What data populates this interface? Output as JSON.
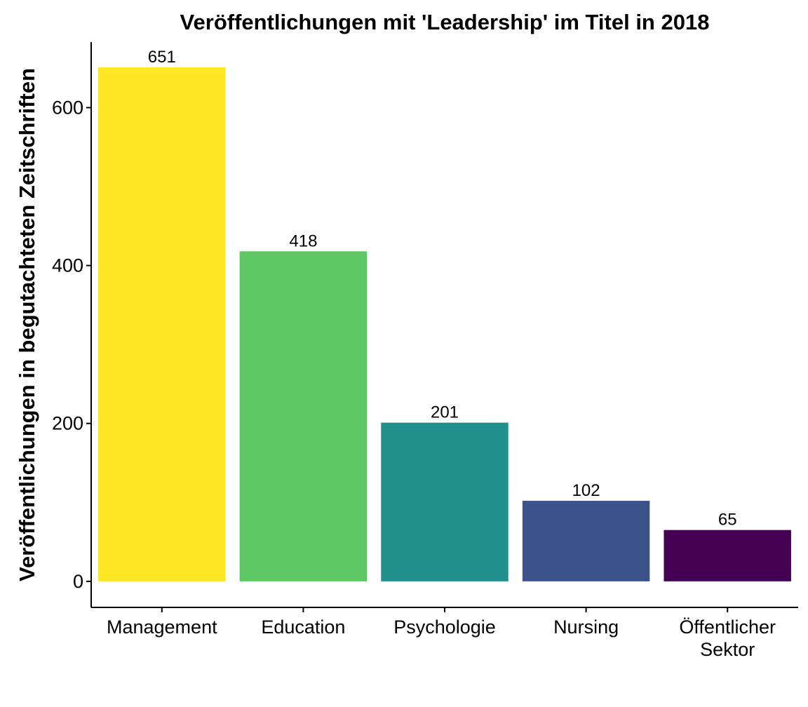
{
  "chart_data": {
    "type": "bar",
    "title": "Veröffentlichungen mit 'Leadership' im Titel in 2018",
    "xlabel": "",
    "ylabel": "Veröffentlichungen in begutachteten Zeitschriften",
    "categories": [
      [
        "Management"
      ],
      [
        "Education"
      ],
      [
        "Psychologie"
      ],
      [
        "Nursing"
      ],
      [
        "Öffentlicher",
        "Sektor"
      ]
    ],
    "values": [
      651,
      418,
      201,
      102,
      65
    ],
    "data_labels": [
      "651",
      "418",
      "201",
      "102",
      "65"
    ],
    "colors": [
      "#FDE725",
      "#5DC863",
      "#21908C",
      "#3B528B",
      "#440154"
    ],
    "yticks": [
      0,
      200,
      400,
      600
    ],
    "ytick_labels": [
      "0",
      "200",
      "400",
      "600"
    ],
    "ylim": [
      -33,
      683
    ],
    "grid": false,
    "legend": "none"
  }
}
